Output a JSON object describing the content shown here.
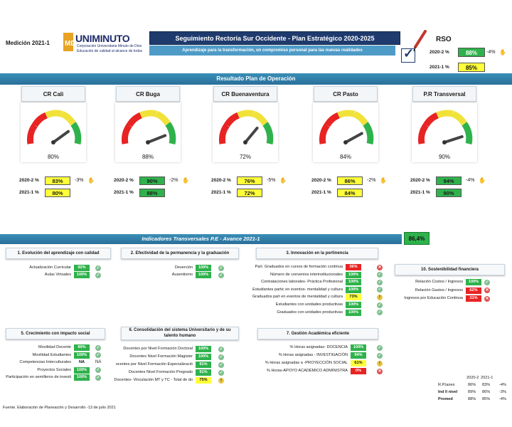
{
  "header": {
    "medicion": "Medición 2021-1",
    "logo_name": "UNIMINUTO",
    "logo_sub1": "Corporación Universitaria Minuto de Dios",
    "logo_sub2": "Educación de calidad al alcance de todos",
    "title": "Seguimiento Rectoria Sur Occidente -  Plan Estratégico 2020-2025",
    "subtitle": "Aprendizaje para la transformación,  un compromiso personal para las nuevas realidades"
  },
  "rso": {
    "title": "RSO",
    "rows": [
      {
        "label": "2020-2 %",
        "value": "88%",
        "color": "green",
        "diff": "-4%"
      },
      {
        "label": "2021-1 %",
        "value": "85%",
        "color": "yellow",
        "diff": ""
      }
    ]
  },
  "resultado": {
    "band_title": "Resultado Plan de Operación",
    "cards": [
      {
        "name": "CR Cali",
        "gauge": 80,
        "pct": "80%",
        "y2020": "83%",
        "c2020": "yellow",
        "diff": "-3%",
        "y2021": "80%",
        "c2021": "yellow"
      },
      {
        "name": "CR Buga",
        "gauge": 88,
        "pct": "88%",
        "y2020": "90%",
        "c2020": "green",
        "diff": "-2%",
        "y2021": "88%",
        "c2021": "green"
      },
      {
        "name": "CR Buenaventura",
        "gauge": 72,
        "pct": "72%",
        "y2020": "76%",
        "c2020": "yellow",
        "diff": "-5%",
        "y2021": "72%",
        "c2021": "yellow"
      },
      {
        "name": "CR Pasto",
        "gauge": 84,
        "pct": "84%",
        "y2020": "86%",
        "c2020": "yellow",
        "diff": "-2%",
        "y2021": "84%",
        "c2021": "yellow"
      },
      {
        "name": "P.R Transversal",
        "gauge": 90,
        "pct": "90%",
        "y2020": "94%",
        "c2020": "green",
        "diff": "-4%",
        "y2021": "90%",
        "c2021": "green"
      }
    ]
  },
  "indicadores": {
    "band_title": "Indicadores Transversales P.E  - Avance 2021-1",
    "avance": "86,4%",
    "sections": {
      "s1": {
        "title": "1. Evolución del aprendizaje con calidad",
        "items": [
          {
            "label": "Actualización Curricular",
            "value": "92%",
            "color": "green",
            "icon": "ok"
          },
          {
            "label": "Aulas Virtuales",
            "value": "100%",
            "color": "green",
            "icon": "ok"
          }
        ]
      },
      "s2": {
        "title": "2. Efectividad de la permanencia y la graduación",
        "items": [
          {
            "label": "Deserción",
            "value": "100%",
            "color": "green",
            "icon": "ok"
          },
          {
            "label": "Ausentismo",
            "value": "100%",
            "color": "green",
            "icon": "ok"
          }
        ]
      },
      "s3": {
        "title": "3. Innovación en la pertinencia",
        "items": [
          {
            "label": "Part. Graduados en cursos de formación continua",
            "value": "36%",
            "color": "red",
            "icon": "x"
          },
          {
            "label": "Número de convenios interinstitucionales",
            "value": "100%",
            "color": "green",
            "icon": "ok"
          },
          {
            "label": "Contrataciones laborales- Práctica Profesional",
            "value": "100%",
            "color": "green",
            "icon": "ok"
          },
          {
            "label": "Estudiantes partic en eventos- mentalidad y cultura",
            "value": "100%",
            "color": "green",
            "icon": "ok"
          },
          {
            "label": "Graduados part en eventos de mentalidad y cultura",
            "value": "73%",
            "color": "yellow",
            "icon": "warn"
          },
          {
            "label": "Estudiantes con unidades productivas",
            "value": "100%",
            "color": "green",
            "icon": "ok"
          },
          {
            "label": "Graduados con unidades productivas",
            "value": "100%",
            "color": "green",
            "icon": "ok"
          }
        ]
      },
      "s10": {
        "title": "10. Sostenibilidad financiera",
        "items": [
          {
            "label": "Relación Costos / Ingresos",
            "value": "100%",
            "color": "green",
            "icon": "ok"
          },
          {
            "label": "Relación Gastos / Ingresos",
            "value": "62%",
            "color": "red",
            "icon": "x"
          },
          {
            "label": "Ingresos por Educación Continua",
            "value": "31%",
            "color": "red",
            "icon": "x"
          }
        ]
      },
      "s5": {
        "title": "5. Crecimiento con impacto social",
        "items": [
          {
            "label": "Movilidad Docente",
            "value": "89%",
            "color": "green",
            "icon": "ok"
          },
          {
            "label": "Movilidad Estudiantes",
            "value": "100%",
            "color": "green",
            "icon": "ok"
          },
          {
            "label": "Competencias Interculturales",
            "value": "NA",
            "color": "na",
            "icon": "na",
            "na_text": "NA"
          },
          {
            "label": "Proyectos Sociales",
            "value": "100%",
            "color": "green",
            "icon": "ok"
          },
          {
            "label": "Participación en semilleros de investi",
            "value": "100%",
            "color": "green",
            "icon": "ok"
          }
        ]
      },
      "s6": {
        "title": "6. Consolidación del sistema Universitario y de su talento humano",
        "items": [
          {
            "label": "Docentes por Nivel Formación Doctoral",
            "value": "100%",
            "color": "green",
            "icon": "ok"
          },
          {
            "label": "Docentes Nivel Formación Magister",
            "value": "100%",
            "color": "green",
            "icon": "ok"
          },
          {
            "label": "ocentes por Nivel Formación Especializació",
            "value": "91%",
            "color": "green",
            "icon": "ok"
          },
          {
            "label": "Docentes Nivel Formación Pregrado",
            "value": "91%",
            "color": "green",
            "icon": "ok"
          },
          {
            "label": "Docentes- Vinculación MT y TC - Total de do",
            "value": "75%",
            "color": "yellow",
            "icon": "warn"
          }
        ]
      },
      "s7": {
        "title": "7. Gestión Académica eficiente",
        "items": [
          {
            "label": "% Horas asignadas- DOCENCIA",
            "value": "100%",
            "color": "green",
            "icon": "ok"
          },
          {
            "label": "% Horas asignadas - INVESTIGACIÓN",
            "value": "94%",
            "color": "green",
            "icon": "ok"
          },
          {
            "label": "% Horas asignadas a -PROYECCIÓN SOCIAL",
            "value": "61%",
            "color": "yellow",
            "icon": "warn"
          },
          {
            "label": "% Horas-APOYO ACADÉMICO ADMINISTRA",
            "value": "0%",
            "color": "red",
            "icon": "x"
          }
        ]
      }
    }
  },
  "summary": {
    "h1": "2020-2",
    "h2": "2021-1",
    "rows": [
      {
        "label": "R.P.lanes",
        "a": "86%",
        "b": "83%",
        "d": "-4%"
      },
      {
        "label": "Ind ll nivel",
        "a": "89%",
        "b": "86%",
        "d": "-3%"
      },
      {
        "label": "Promed",
        "a": "88%",
        "b": "85%",
        "d": "-4%"
      }
    ]
  },
  "footer": "Fuente. Elaboración de Planeación y Desarrollo -13 de julio 2021",
  "colors": {
    "green": "#2fb24c",
    "yellow": "#ffff3a",
    "red": "#e82323",
    "navy": "#1f3b6e"
  }
}
